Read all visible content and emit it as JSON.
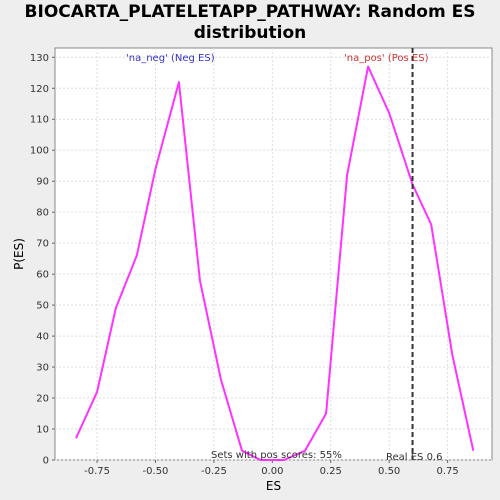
{
  "chart_data": {
    "type": "line",
    "title_line1": "BIOCARTA_PLATELETAPP_PATHWAY: Random ES",
    "title_line2": "distribution",
    "xlabel": "ES",
    "ylabel": "P(ES)",
    "xlim": [
      -0.93,
      0.94
    ],
    "ylim": [
      0,
      133
    ],
    "xticks": [
      -0.75,
      -0.5,
      -0.25,
      0.0,
      0.25,
      0.5,
      0.75
    ],
    "xtick_labels": [
      "-0.75",
      "-0.50",
      "-0.25",
      "0.00",
      "0.25",
      "0.50",
      "0.75"
    ],
    "yticks": [
      0,
      10,
      20,
      30,
      40,
      50,
      60,
      70,
      80,
      90,
      100,
      110,
      120,
      130
    ],
    "ytick_labels": [
      "0",
      "10",
      "20",
      "30",
      "40",
      "50",
      "60",
      "70",
      "80",
      "90",
      "100",
      "110",
      "120",
      "130"
    ],
    "grid": true,
    "series": [
      {
        "color": "#ff33ff",
        "x": [
          -0.84,
          -0.75,
          -0.67,
          -0.58,
          -0.5,
          -0.4,
          -0.31,
          -0.22,
          -0.13,
          -0.05,
          0.05,
          0.14,
          0.23,
          0.32,
          0.41,
          0.5,
          0.6,
          0.68,
          0.77,
          0.86
        ],
        "y": [
          7,
          22,
          49,
          66,
          94,
          122,
          58,
          26,
          3,
          0,
          0,
          3,
          15,
          92,
          127,
          112,
          89,
          76,
          34,
          3
        ]
      }
    ],
    "real_es": 0.6,
    "real_es_color": "#333333",
    "annotations": {
      "neg_label": "'na_neg' (Neg ES)",
      "neg_color": "#3333cc",
      "pos_label": "'na_pos' (Pos ES)",
      "pos_color": "#cc3333",
      "sets_label": "Sets with pos scores: 55%",
      "real_es_label": "Real ES 0.6"
    }
  }
}
